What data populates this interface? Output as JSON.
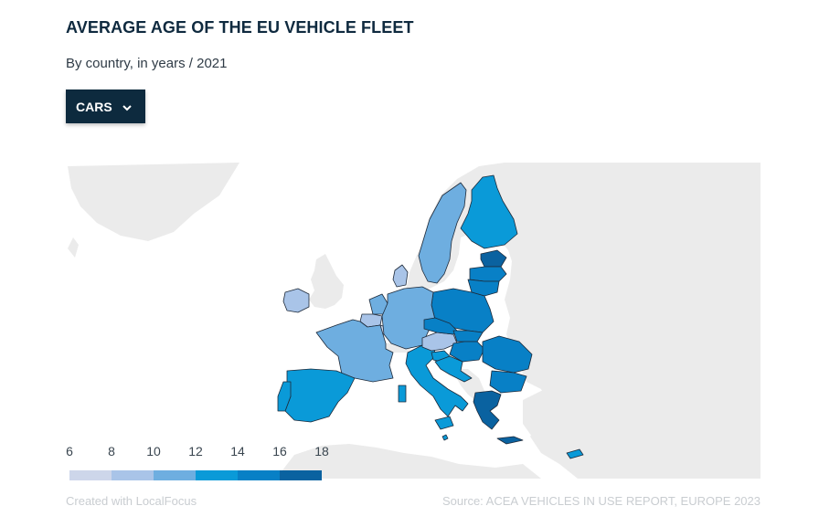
{
  "header": {
    "title": "AVERAGE AGE OF THE EU VEHICLE FLEET",
    "subtitle": "By country, in years / 2021"
  },
  "dropdown": {
    "selected": "CARS",
    "icon": "chevron-down-icon"
  },
  "legend": {
    "ticks": [
      "6",
      "8",
      "10",
      "12",
      "14",
      "16",
      "18"
    ],
    "colors": [
      "#cdd6ea",
      "#a9c4e8",
      "#6eaee0",
      "#0a9ad8",
      "#0880c6",
      "#0a62a0"
    ]
  },
  "map": {
    "land_color": "#ebebeb",
    "border_color": "#1e2a3a",
    "countries": [
      {
        "name": "Sweden",
        "color": "#6eaee0"
      },
      {
        "name": "Finland",
        "color": "#0a9ad8"
      },
      {
        "name": "Estonia",
        "color": "#0a62a0"
      },
      {
        "name": "Latvia",
        "color": "#0880c6"
      },
      {
        "name": "Lithuania",
        "color": "#0880c6"
      },
      {
        "name": "Poland",
        "color": "#0880c6"
      },
      {
        "name": "Denmark",
        "color": "#a9c4e8"
      },
      {
        "name": "Ireland",
        "color": "#a9c4e8"
      },
      {
        "name": "Netherlands",
        "color": "#6eaee0"
      },
      {
        "name": "Belgium",
        "color": "#a9c4e8"
      },
      {
        "name": "Luxembourg",
        "color": "#cdd6ea"
      },
      {
        "name": "Germany",
        "color": "#6eaee0"
      },
      {
        "name": "France",
        "color": "#6eaee0"
      },
      {
        "name": "Spain",
        "color": "#0a9ad8"
      },
      {
        "name": "Portugal",
        "color": "#0a9ad8"
      },
      {
        "name": "Italy",
        "color": "#0a9ad8"
      },
      {
        "name": "Austria",
        "color": "#a9c4e8"
      },
      {
        "name": "Czechia",
        "color": "#0880c6"
      },
      {
        "name": "Slovakia",
        "color": "#0880c6"
      },
      {
        "name": "Hungary",
        "color": "#0880c6"
      },
      {
        "name": "Slovenia",
        "color": "#0a9ad8"
      },
      {
        "name": "Croatia",
        "color": "#0a9ad8"
      },
      {
        "name": "Romania",
        "color": "#0880c6"
      },
      {
        "name": "Bulgaria",
        "color": "#0880c6"
      },
      {
        "name": "Greece",
        "color": "#0a62a0"
      },
      {
        "name": "Cyprus",
        "color": "#0a9ad8"
      },
      {
        "name": "Malta",
        "color": "#0a9ad8"
      }
    ]
  },
  "footer": {
    "credit": "Created with LocalFocus",
    "source": "Source:  ACEA VEHICLES IN USE REPORT, EUROPE 2023"
  }
}
